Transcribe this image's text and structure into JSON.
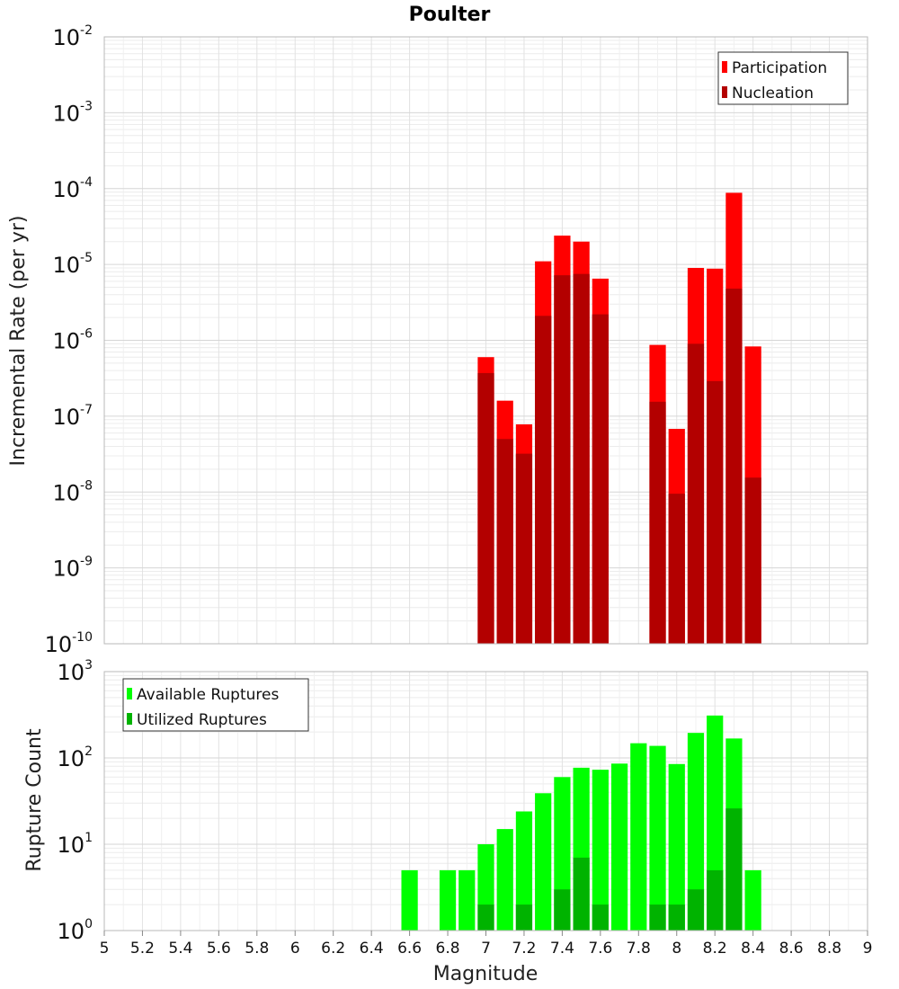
{
  "chart_data": [
    {
      "type": "bar",
      "title": "Poulter",
      "xlabel": "Magnitude",
      "ylabel": "Incremental Rate (per yr)",
      "yscale": "log",
      "xlim": [
        5,
        9
      ],
      "ylim": [
        1e-10,
        0.01
      ],
      "x_ticks": [
        "5",
        "5.2",
        "5.4",
        "5.6",
        "5.8",
        "6",
        "6.2",
        "6.4",
        "6.6",
        "6.8",
        "7",
        "7.2",
        "7.4",
        "7.6",
        "7.8",
        "8",
        "8.2",
        "8.4",
        "8.6",
        "8.8",
        "9"
      ],
      "y_ticks": [
        {
          "base": "10",
          "exp": "-10"
        },
        {
          "base": "10",
          "exp": "-9"
        },
        {
          "base": "10",
          "exp": "-8"
        },
        {
          "base": "10",
          "exp": "-7"
        },
        {
          "base": "10",
          "exp": "-6"
        },
        {
          "base": "10",
          "exp": "-5"
        },
        {
          "base": "10",
          "exp": "-4"
        },
        {
          "base": "10",
          "exp": "-3"
        },
        {
          "base": "10",
          "exp": "-2"
        }
      ],
      "grid": true,
      "legend_position": "top-right",
      "x": [
        7.0,
        7.1,
        7.2,
        7.3,
        7.4,
        7.5,
        7.6,
        7.9,
        8.0,
        8.1,
        8.2,
        8.3,
        8.4
      ],
      "series": [
        {
          "name": "Participation",
          "color": "#ff0000",
          "values": [
            6e-07,
            1.6e-07,
            7.8e-08,
            1.1e-05,
            2.4e-05,
            2e-05,
            6.5e-06,
            8.7e-07,
            6.8e-08,
            9e-06,
            8.8e-06,
            8.8e-05,
            8.3e-07
          ]
        },
        {
          "name": "Nucleation",
          "color": "#b30000",
          "values": [
            3.7e-07,
            5e-08,
            3.2e-08,
            2.1e-06,
            7.2e-06,
            7.5e-06,
            2.2e-06,
            1.55e-07,
            9.5e-09,
            9e-07,
            2.9e-07,
            4.8e-06,
            1.55e-08
          ]
        }
      ]
    },
    {
      "type": "bar",
      "title": "",
      "xlabel": "Magnitude",
      "ylabel": "Rupture Count",
      "yscale": "log",
      "xlim": [
        5,
        9
      ],
      "ylim": [
        1,
        1000
      ],
      "y_ticks": [
        {
          "base": "10",
          "exp": "0"
        },
        {
          "base": "10",
          "exp": "1"
        },
        {
          "base": "10",
          "exp": "2"
        },
        {
          "base": "10",
          "exp": "3"
        }
      ],
      "grid": true,
      "legend_position": "top-left",
      "x": [
        6.6,
        6.8,
        6.9,
        7.0,
        7.1,
        7.2,
        7.3,
        7.4,
        7.5,
        7.6,
        7.7,
        7.8,
        7.9,
        8.0,
        8.1,
        8.2,
        8.3,
        8.4
      ],
      "series": [
        {
          "name": "Available Ruptures",
          "color": "#00ff00",
          "values": [
            5,
            5,
            5,
            10,
            15,
            24,
            39,
            60,
            77,
            73,
            86,
            148,
            138,
            85,
            195,
            310,
            168,
            5
          ]
        },
        {
          "name": "Utilized Ruptures",
          "color": "#00b300",
          "values": [
            0,
            0,
            0,
            2,
            1,
            2,
            1,
            3,
            7,
            2,
            0,
            0,
            2,
            2,
            3,
            5,
            26,
            1
          ]
        }
      ]
    }
  ]
}
